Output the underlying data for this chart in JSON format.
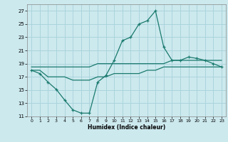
{
  "title": "",
  "xlabel": "Humidex (Indice chaleur)",
  "background_color": "#cce9ee",
  "grid_color": "#aad4db",
  "line_color": "#1a7a6e",
  "xlim": [
    -0.5,
    23.5
  ],
  "ylim": [
    11,
    28
  ],
  "xticks": [
    0,
    1,
    2,
    3,
    4,
    5,
    6,
    7,
    8,
    9,
    10,
    11,
    12,
    13,
    14,
    15,
    16,
    17,
    18,
    19,
    20,
    21,
    22,
    23
  ],
  "yticks": [
    11,
    13,
    15,
    17,
    19,
    21,
    23,
    25,
    27
  ],
  "main_x": [
    0,
    1,
    2,
    3,
    4,
    5,
    6,
    7,
    8,
    9,
    10,
    11,
    12,
    13,
    14,
    15,
    16,
    17,
    18,
    19,
    20,
    21,
    22,
    23
  ],
  "main_y": [
    18.0,
    17.5,
    16.2,
    15.1,
    13.5,
    12.0,
    11.5,
    11.5,
    16.2,
    17.2,
    19.5,
    22.5,
    23.0,
    25.0,
    25.5,
    27.0,
    21.5,
    19.5,
    19.5,
    20.0,
    19.8,
    19.5,
    19.0,
    18.5
  ],
  "line1_x": [
    0,
    1,
    2,
    3,
    4,
    5,
    6,
    7,
    8,
    9,
    10,
    11,
    12,
    13,
    14,
    15,
    16,
    17,
    18,
    19,
    20,
    21,
    22,
    23
  ],
  "line1_y": [
    18.0,
    18.0,
    17.0,
    17.0,
    17.0,
    16.5,
    16.5,
    16.5,
    17.0,
    17.0,
    17.5,
    17.5,
    17.5,
    17.5,
    18.0,
    18.0,
    18.5,
    18.5,
    18.5,
    18.5,
    18.5,
    18.5,
    18.5,
    18.5
  ],
  "line2_x": [
    0,
    1,
    2,
    3,
    4,
    5,
    6,
    7,
    8,
    9,
    10,
    11,
    12,
    13,
    14,
    15,
    16,
    17,
    18,
    19,
    20,
    21,
    22,
    23
  ],
  "line2_y": [
    18.5,
    18.5,
    18.5,
    18.5,
    18.5,
    18.5,
    18.5,
    18.5,
    19.0,
    19.0,
    19.0,
    19.0,
    19.0,
    19.0,
    19.0,
    19.0,
    19.0,
    19.5,
    19.5,
    19.5,
    19.5,
    19.5,
    19.5,
    19.5
  ]
}
